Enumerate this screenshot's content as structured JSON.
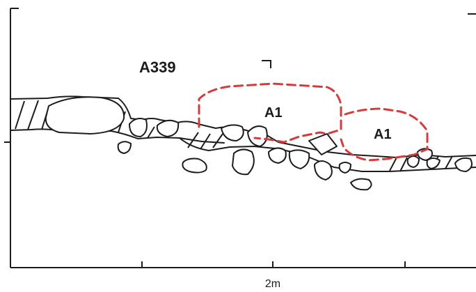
{
  "section": {
    "feature_label": "A339",
    "context_labels": [
      "A1",
      "A1"
    ],
    "scale_label": "2m"
  },
  "colors": {
    "ink": "#1c1c1c",
    "context_outline": "#d63a3a"
  }
}
